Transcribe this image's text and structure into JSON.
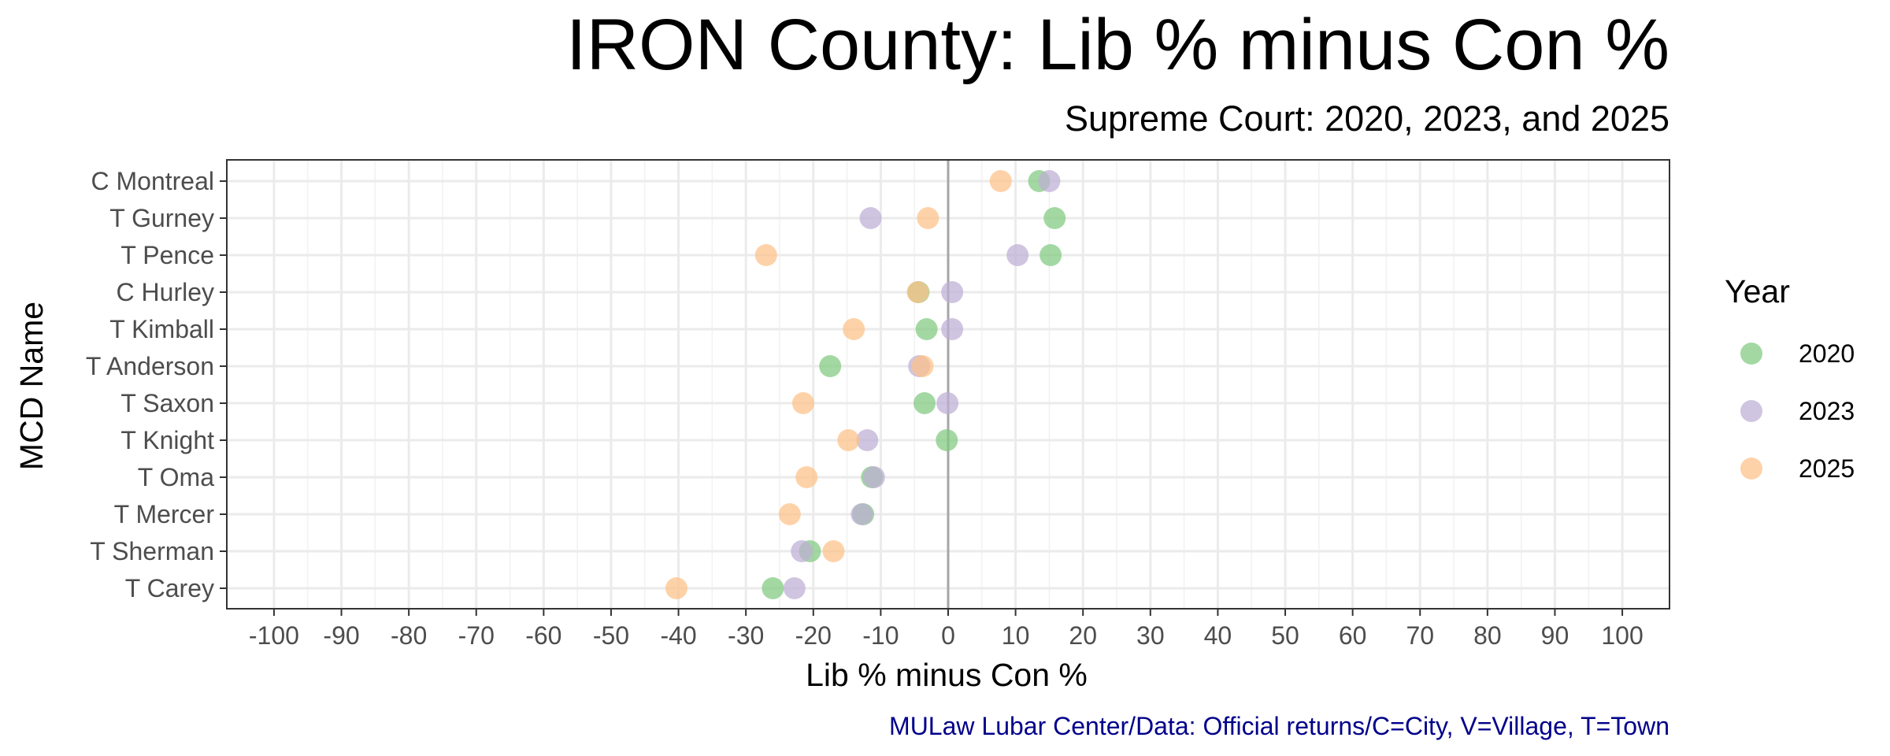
{
  "chart_data": {
    "type": "scatter",
    "title": "IRON County: Lib % minus Con %",
    "subtitle": "Supreme Court: 2020, 2023, and 2025",
    "xlabel": "Lib % minus Con %",
    "ylabel": "MCD Name",
    "caption": "MULaw Lubar Center/Data: Official returns/C=City, V=Village, T=Town",
    "xlim": [
      -107,
      107
    ],
    "x_ticks": [
      -100,
      -90,
      -80,
      -70,
      -60,
      -50,
      -40,
      -30,
      -20,
      -10,
      0,
      10,
      20,
      30,
      40,
      50,
      60,
      70,
      80,
      90,
      100
    ],
    "grid": true,
    "reference_line": 0,
    "legend_title": "Year",
    "legend_position": "right",
    "categories": [
      "C Montreal",
      "T Gurney",
      "T Pence",
      "C Hurley",
      "T Kimball",
      "T Anderson",
      "T Saxon",
      "T Knight",
      "T Oma",
      "T Mercer",
      "T Sherman",
      "T Carey"
    ],
    "series": [
      {
        "name": "2020",
        "color": "#7fc97f",
        "values": [
          13.5,
          15.8,
          15.2,
          -4.4,
          -3.2,
          -17.5,
          -3.5,
          -0.2,
          -11.3,
          -12.6,
          -20.5,
          -26.0
        ]
      },
      {
        "name": "2023",
        "color": "#beaed4",
        "values": [
          15.0,
          -11.5,
          10.3,
          0.6,
          0.6,
          -4.3,
          -0.1,
          -12.0,
          -11.0,
          -12.8,
          -21.7,
          -22.8
        ]
      },
      {
        "name": "2025",
        "color": "#fdc086",
        "values": [
          7.8,
          -3.0,
          -27.0,
          -4.5,
          -14.0,
          -3.8,
          -21.5,
          -14.8,
          -21.0,
          -23.5,
          -17.0,
          -40.3
        ]
      }
    ]
  }
}
